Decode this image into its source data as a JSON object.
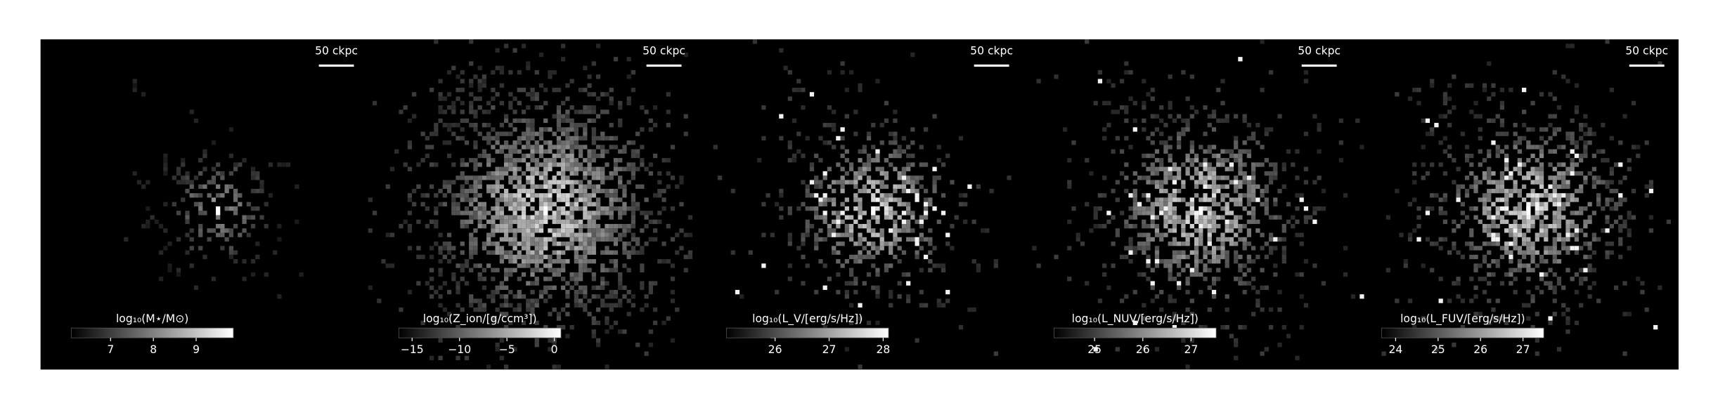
{
  "chart_data": [
    {
      "type": "image",
      "colormap": "gray",
      "scale_bar_label": "50 ckpc",
      "colorbar_label": "log₁₀(M⋆/M⊙)",
      "clim": [
        6.08,
        9.87
      ],
      "cticks": [
        7,
        8,
        9
      ]
    },
    {
      "type": "image",
      "colormap": "gray",
      "scale_bar_label": "50 ckpc",
      "colorbar_label": "log₁₀(Z_ion/[g/ccm³])",
      "clim": [
        -16.4,
        0.7
      ],
      "cticks": [
        {
          "value": -15,
          "label": "−15"
        },
        {
          "value": -10,
          "label": "−10"
        },
        {
          "value": -5,
          "label": "−5"
        },
        0
      ]
    },
    {
      "type": "image",
      "colormap": "gray",
      "scale_bar_label": "50 ckpc",
      "colorbar_label": "log₁₀(L_V/[erg/s/Hz])",
      "clim": [
        25.1,
        28.1
      ],
      "cticks": [
        26,
        27,
        28
      ]
    },
    {
      "type": "image",
      "colormap": "gray",
      "scale_bar_label": "50 ckpc",
      "colorbar_label": "log₁₀(L_NUV/[erg/s/Hz])",
      "clim": [
        24.16,
        27.52
      ],
      "cticks": [
        25,
        26,
        27
      ]
    },
    {
      "type": "image",
      "colormap": "gray",
      "scale_bar_label": "50 ckpc",
      "colorbar_label": "log₁₀(L_FUV/[erg/s/Hz])",
      "clim": [
        23.67,
        27.49
      ],
      "cticks": [
        24,
        25,
        26,
        27
      ]
    }
  ]
}
